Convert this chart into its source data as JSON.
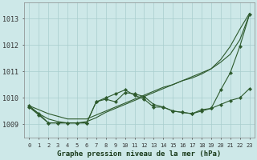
{
  "title": "Graphe pression niveau de la mer (hPa)",
  "xlabel_ticks": [
    "0",
    "1",
    "2",
    "3",
    "4",
    "5",
    "6",
    "7",
    "8",
    "9",
    "10",
    "11",
    "12",
    "13",
    "14",
    "15",
    "16",
    "17",
    "18",
    "19",
    "20",
    "21",
    "22",
    "23"
  ],
  "yticks": [
    1009,
    1010,
    1011,
    1012,
    1013
  ],
  "ylim": [
    1008.5,
    1013.6
  ],
  "xlim": [
    -0.5,
    23.5
  ],
  "bg_color": "#cde8e8",
  "line_color": "#2d5a2d",
  "grid_color": "#a8cece",
  "smooth_line1": [
    1009.7,
    1009.55,
    1009.4,
    1009.3,
    1009.2,
    1009.2,
    1009.2,
    1009.35,
    1009.5,
    1009.65,
    1009.8,
    1009.95,
    1010.1,
    1010.25,
    1010.4,
    1010.5,
    1010.65,
    1010.8,
    1010.95,
    1011.1,
    1011.35,
    1011.65,
    1012.2,
    1013.15
  ],
  "smooth_line2": [
    1009.65,
    1009.4,
    1009.2,
    1009.1,
    1009.05,
    1009.05,
    1009.1,
    1009.25,
    1009.45,
    1009.6,
    1009.75,
    1009.9,
    1010.05,
    1010.2,
    1010.35,
    1010.5,
    1010.65,
    1010.75,
    1010.9,
    1011.1,
    1011.45,
    1011.95,
    1012.6,
    1013.2
  ],
  "marker_line1": [
    1009.65,
    1009.35,
    1009.05,
    1009.05,
    1009.05,
    1009.05,
    1009.05,
    1009.85,
    1009.95,
    1009.85,
    1010.2,
    1010.15,
    1010.05,
    1009.75,
    1009.65,
    1009.5,
    1009.45,
    1009.4,
    1009.55,
    1009.6,
    1009.75,
    1009.9,
    1010.0,
    1010.35
  ],
  "marker_line2": [
    1009.7,
    1009.4,
    1009.05,
    1009.05,
    1009.05,
    1009.05,
    1009.05,
    1009.85,
    1010.0,
    1010.15,
    1010.3,
    1010.1,
    1009.95,
    1009.65,
    1009.65,
    1009.5,
    1009.45,
    1009.4,
    1009.5,
    1009.6,
    1010.3,
    1010.95,
    1011.95,
    1013.15
  ]
}
